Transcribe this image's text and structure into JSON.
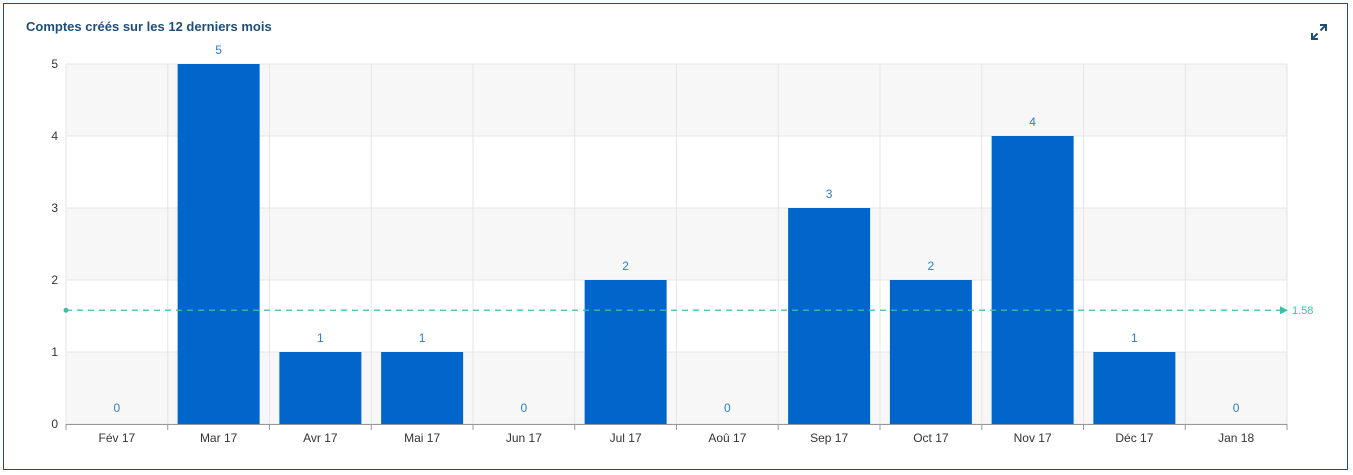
{
  "panel": {
    "title": "Comptes créés sur les 12 derniers mois",
    "expand_icon": "expand-icon"
  },
  "colors": {
    "bar": "#0066cc",
    "value_label": "#2a7fd0",
    "average_line": "#3bbfa9",
    "title": "#1f4e79",
    "grid": "#e6e6e6",
    "band": "#f7f7f7"
  },
  "chart_data": {
    "type": "bar",
    "title": "Comptes créés sur les 12 derniers mois",
    "categories": [
      "Fév 17",
      "Mar 17",
      "Avr 17",
      "Mai 17",
      "Jun 17",
      "Jul 17",
      "Aoû 17",
      "Sep 17",
      "Oct 17",
      "Nov 17",
      "Déc 17",
      "Jan 18"
    ],
    "values": [
      0,
      5,
      1,
      1,
      0,
      2,
      0,
      3,
      2,
      4,
      1,
      0
    ],
    "value_labels": [
      "0",
      "5",
      "1",
      "1",
      "0",
      "2",
      "0",
      "3",
      "2",
      "4",
      "1",
      "0"
    ],
    "y_ticks": [
      0,
      1,
      2,
      3,
      4,
      5
    ],
    "ylim": [
      0,
      5
    ],
    "average": 1.58,
    "average_label": "1.58",
    "grid": true,
    "legend": "none"
  }
}
